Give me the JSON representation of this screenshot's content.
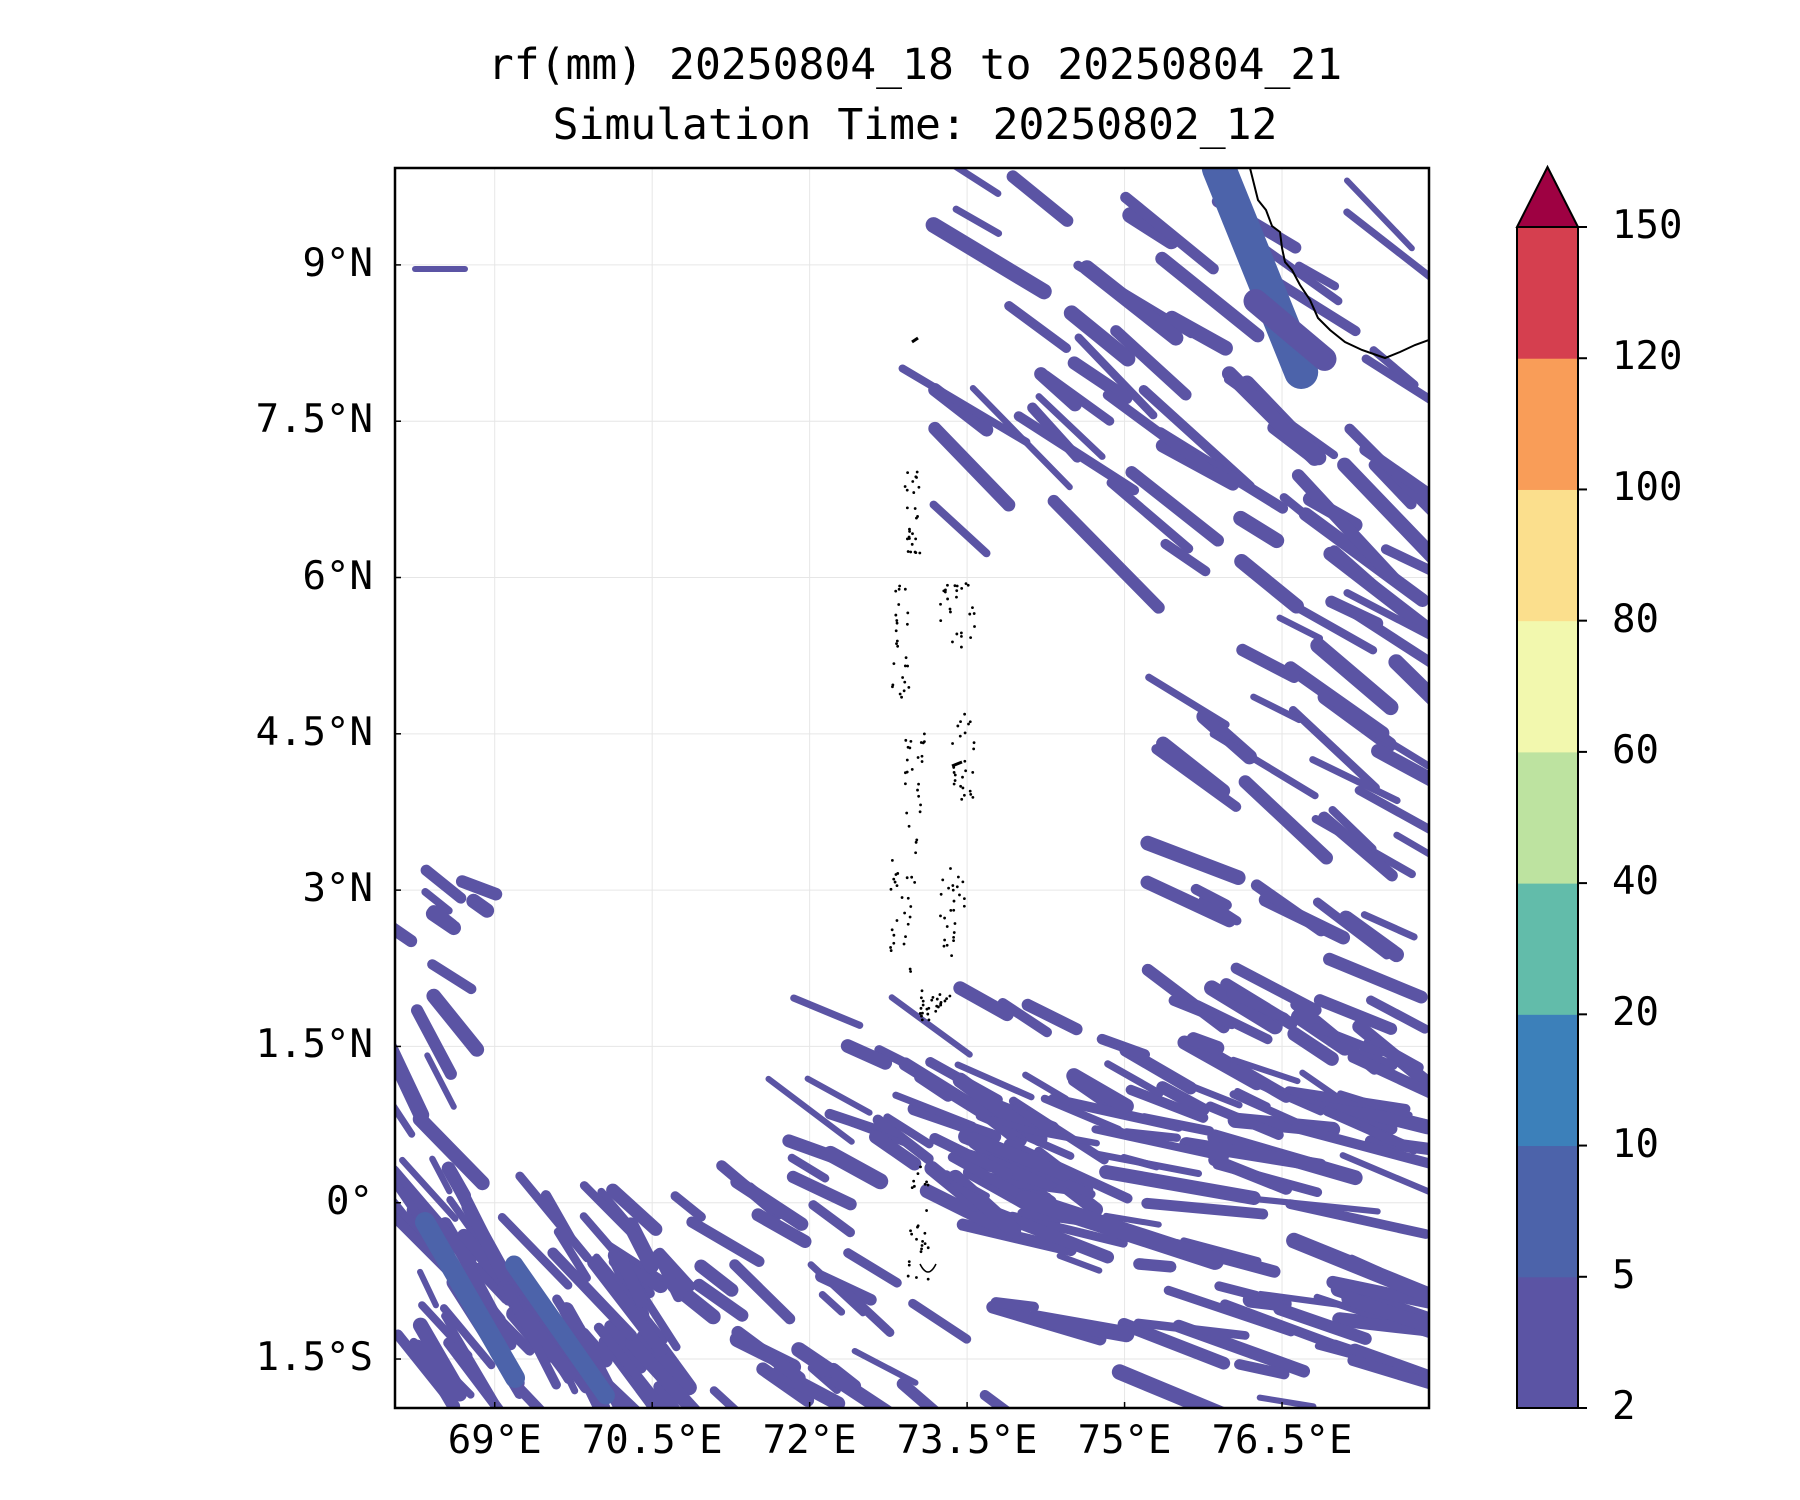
{
  "title": {
    "line1": "rf(mm) 20250804_18 to 20250804_21",
    "line2": "Simulation Time: 20250802_12"
  },
  "map": {
    "lon_range": [
      68.05,
      77.9
    ],
    "lat_range": [
      -1.97,
      9.93
    ],
    "y_ticks": [
      {
        "value": 9.0,
        "label": "9°N"
      },
      {
        "value": 7.5,
        "label": "7.5°N"
      },
      {
        "value": 6.0,
        "label": "6°N"
      },
      {
        "value": 4.5,
        "label": "4.5°N"
      },
      {
        "value": 3.0,
        "label": "3°N"
      },
      {
        "value": 1.5,
        "label": "1.5°N"
      },
      {
        "value": 0.0,
        "label": "0°"
      },
      {
        "value": -1.5,
        "label": "1.5°S"
      }
    ],
    "x_ticks": [
      {
        "value": 69.0,
        "label": "69°E"
      },
      {
        "value": 70.5,
        "label": "70.5°E"
      },
      {
        "value": 72.0,
        "label": "72°E"
      },
      {
        "value": 73.5,
        "label": "73.5°E"
      },
      {
        "value": 75.0,
        "label": "75°E"
      },
      {
        "value": 76.5,
        "label": "76.5°E"
      }
    ],
    "grid": true,
    "rain_color": "#5b54a4",
    "rain_color_mid": "#4c63aa"
  },
  "colorbar": {
    "extend": "max",
    "levels": [
      2,
      5,
      10,
      20,
      40,
      60,
      80,
      100,
      120,
      150
    ],
    "colors": [
      "#5b54a4",
      "#4c63aa",
      "#3c80ba",
      "#62bcaa",
      "#bde3a0",
      "#f2f8ae",
      "#fbdf8d",
      "#f99d58",
      "#d53f4f"
    ],
    "extend_color": "#9e0142"
  }
}
